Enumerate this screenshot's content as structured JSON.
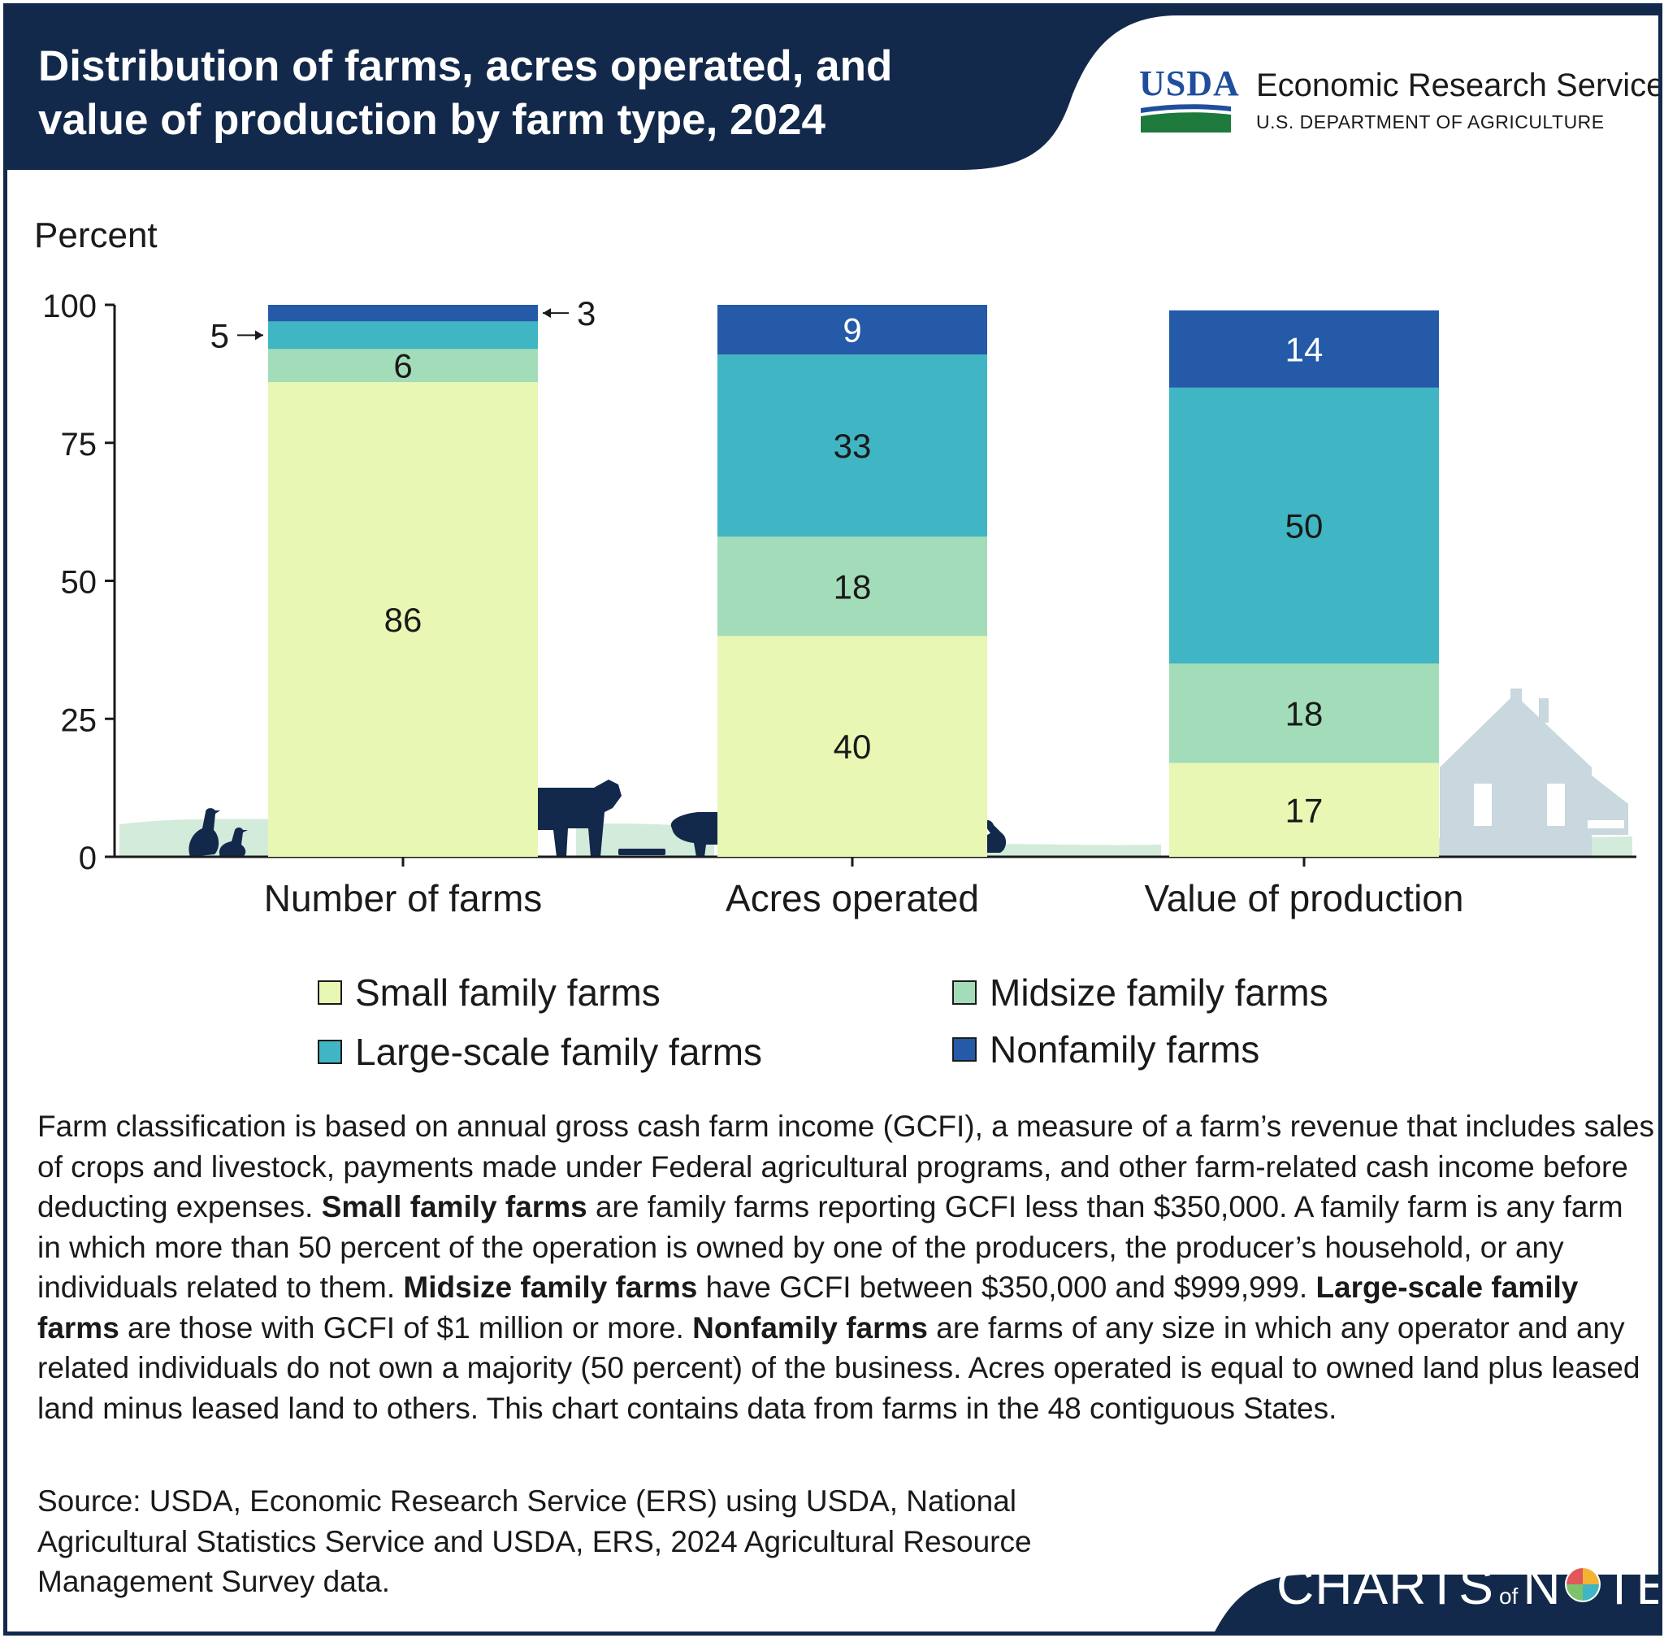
{
  "header": {
    "title": "Distribution of farms, acres operated, and value of production by farm type, 2024",
    "agency_name": "Economic Research Service",
    "department": "U.S. DEPARTMENT OF AGRICULTURE",
    "logo_text": "USDA"
  },
  "chart_data": {
    "type": "bar",
    "stacked": true,
    "ylabel": "Percent",
    "xlabel": "",
    "ylim": [
      0,
      100
    ],
    "yticks": [
      "0",
      "25",
      "50",
      "75",
      "100"
    ],
    "categories": [
      "Number of farms",
      "Acres operated",
      "Value of production"
    ],
    "series": [
      {
        "name": "Small family farms",
        "values": [
          86,
          40,
          17
        ],
        "color": "#e8f7b3"
      },
      {
        "name": "Midsize family farms",
        "values": [
          6,
          18,
          18
        ],
        "color": "#a3dcb8"
      },
      {
        "name": "Large-scale family farms",
        "values": [
          5,
          33,
          50
        ],
        "color": "#40b5c3"
      },
      {
        "name": "Nonfamily farms",
        "values": [
          3,
          9,
          14
        ],
        "color": "#245aa8"
      }
    ],
    "data_labels": [
      [
        "86",
        "6",
        "5",
        "3"
      ],
      [
        "40",
        "18",
        "33",
        "9"
      ],
      [
        "17",
        "18",
        "50",
        "14"
      ]
    ],
    "legend_position": "bottom",
    "grid": false
  },
  "colors": {
    "header_bg": "#13294b",
    "brand_bg": "#13294b",
    "axis": "#1a1a1a",
    "grass": "#cde9d6",
    "animals": "#13294b",
    "house": "#c9d7de"
  },
  "note": {
    "p1": "Farm classification is based on annual gross cash farm income (GCFI), a measure of a farm’s revenue that includes sales of crops and livestock, payments made under Federal agricultural programs, and other farm-related cash income before deducting expenses. ",
    "b1": "Small family farms",
    "p2": " are family farms reporting GCFI less than $350,000. A family farm is any farm in which more than 50 percent of the operation is owned by one of the producers, the producer’s household, or any individuals related to them. ",
    "b2": "Midsize family farms",
    "p3": " have GCFI between $350,000 and $999,999. ",
    "b3": "Large-scale family farms",
    "p4": " are those with GCFI of $1 million or more. ",
    "b4": "Nonfamily farms",
    "p5": " are farms of any size in which any operator and any related individuals do not own a majority (50 percent) of the business. Acres operated is equal to owned land plus leased land minus leased land to others. This chart contains data from farms in the 48 contiguous States."
  },
  "source": "Source: USDA, Economic Research Service (ERS) using USDA, National Agricultural Statistics Service and USDA, ERS, 2024 Agricultural Resource Management Survey data.",
  "brand": {
    "part1": "CHARTS",
    "part2": "of",
    "part3": "N",
    "part4": "TE"
  },
  "icons": [
    "usda-logo-icon",
    "duck-icon",
    "cow-icon",
    "pig-icon",
    "chicken-icon",
    "farmhouse-icon",
    "pie-chart-icon"
  ]
}
